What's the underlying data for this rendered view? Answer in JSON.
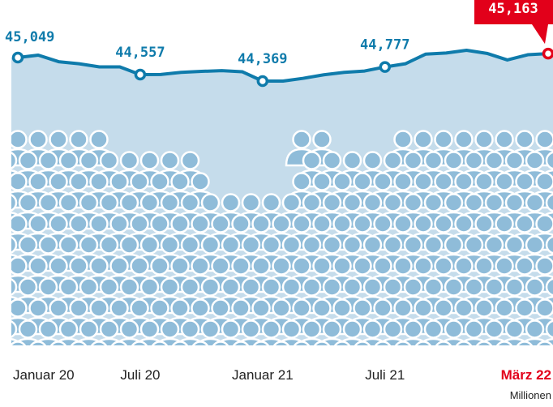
{
  "chart_data": {
    "type": "line",
    "unit": "Millionen",
    "categories": [
      "Januar 20",
      null,
      null,
      null,
      null,
      null,
      "Juli 20",
      null,
      null,
      null,
      null,
      null,
      "Januar 21",
      null,
      null,
      null,
      null,
      null,
      "Juli 21",
      null,
      null,
      null,
      null,
      null,
      null,
      null,
      "März 22"
    ],
    "series": [
      {
        "color": "#0f7bab",
        "values": [
          45.049,
          45.12,
          44.93,
          44.87,
          44.78,
          44.78,
          44.557,
          44.56,
          44.62,
          44.65,
          44.67,
          44.64,
          44.369,
          44.37,
          44.45,
          44.55,
          44.62,
          44.66,
          44.777,
          44.87,
          45.15,
          45.18,
          45.26,
          45.17,
          44.98,
          45.13,
          45.163
        ],
        "value_labels": [
          "45,049",
          null,
          null,
          null,
          null,
          null,
          "44,557",
          null,
          null,
          null,
          null,
          null,
          "44,369",
          null,
          null,
          null,
          null,
          null,
          "44,777",
          null,
          null,
          null,
          null,
          null,
          null,
          null,
          "45,163"
        ]
      }
    ],
    "highlight_color": "#e2001a"
  }
}
